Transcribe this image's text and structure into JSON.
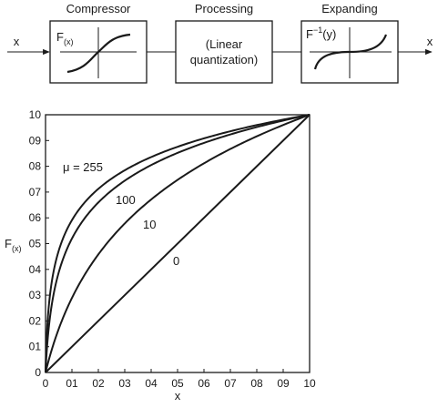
{
  "block_diagram": {
    "input_label": "x",
    "output_label": "x",
    "blocks": [
      {
        "title": "Compressor",
        "inner_label_main": "F",
        "inner_label_sub": "(x)"
      },
      {
        "title": "Processing",
        "line1": "(Linear",
        "line2": "quantization)"
      },
      {
        "title": "Expanding",
        "inner_label_main": "F",
        "inner_label_sup": "−1",
        "inner_label_tail": "(y)"
      }
    ]
  },
  "chart_data": {
    "type": "line",
    "title": "",
    "xlabel": "x",
    "ylabel_main": "F",
    "ylabel_sub": "(x)",
    "xlim": [
      0,
      1
    ],
    "ylim": [
      0,
      1
    ],
    "x_ticks": [
      0,
      0.1,
      0.2,
      0.3,
      0.4,
      0.5,
      0.6,
      0.7,
      0.8,
      0.9,
      1.0
    ],
    "x_tick_labels": [
      "0",
      "01",
      "02",
      "03",
      "04",
      "05",
      "06",
      "07",
      "08",
      "09",
      "10"
    ],
    "y_ticks": [
      0,
      0.1,
      0.2,
      0.3,
      0.4,
      0.5,
      0.6,
      0.7,
      0.8,
      0.9,
      1.0
    ],
    "y_tick_labels": [
      "0",
      "01",
      "02",
      "03",
      "04",
      "05",
      "06",
      "07",
      "08",
      "09",
      "10"
    ],
    "grid": false,
    "curve_formula": "F(x) = ln(1 + mu*x) / ln(1 + mu)",
    "series": [
      {
        "name": "μ = 255",
        "mu": 255,
        "x": [
          0,
          0.02,
          0.05,
          0.1,
          0.2,
          0.3,
          0.5,
          0.7,
          1.0
        ],
        "y": [
          0,
          0.32,
          0.47,
          0.59,
          0.71,
          0.79,
          0.88,
          0.94,
          1.0
        ]
      },
      {
        "name": "100",
        "mu": 100,
        "x": [
          0,
          0.02,
          0.05,
          0.1,
          0.2,
          0.3,
          0.5,
          0.7,
          1.0
        ],
        "y": [
          0,
          0.24,
          0.39,
          0.52,
          0.66,
          0.74,
          0.85,
          0.92,
          1.0
        ]
      },
      {
        "name": "10",
        "mu": 10,
        "x": [
          0,
          0.05,
          0.1,
          0.2,
          0.3,
          0.4,
          0.5,
          0.7,
          1.0
        ],
        "y": [
          0,
          0.17,
          0.29,
          0.46,
          0.58,
          0.68,
          0.75,
          0.87,
          1.0
        ]
      },
      {
        "name": "0",
        "mu": 0,
        "x": [
          0,
          1.0
        ],
        "y": [
          0,
          1.0
        ]
      }
    ]
  }
}
